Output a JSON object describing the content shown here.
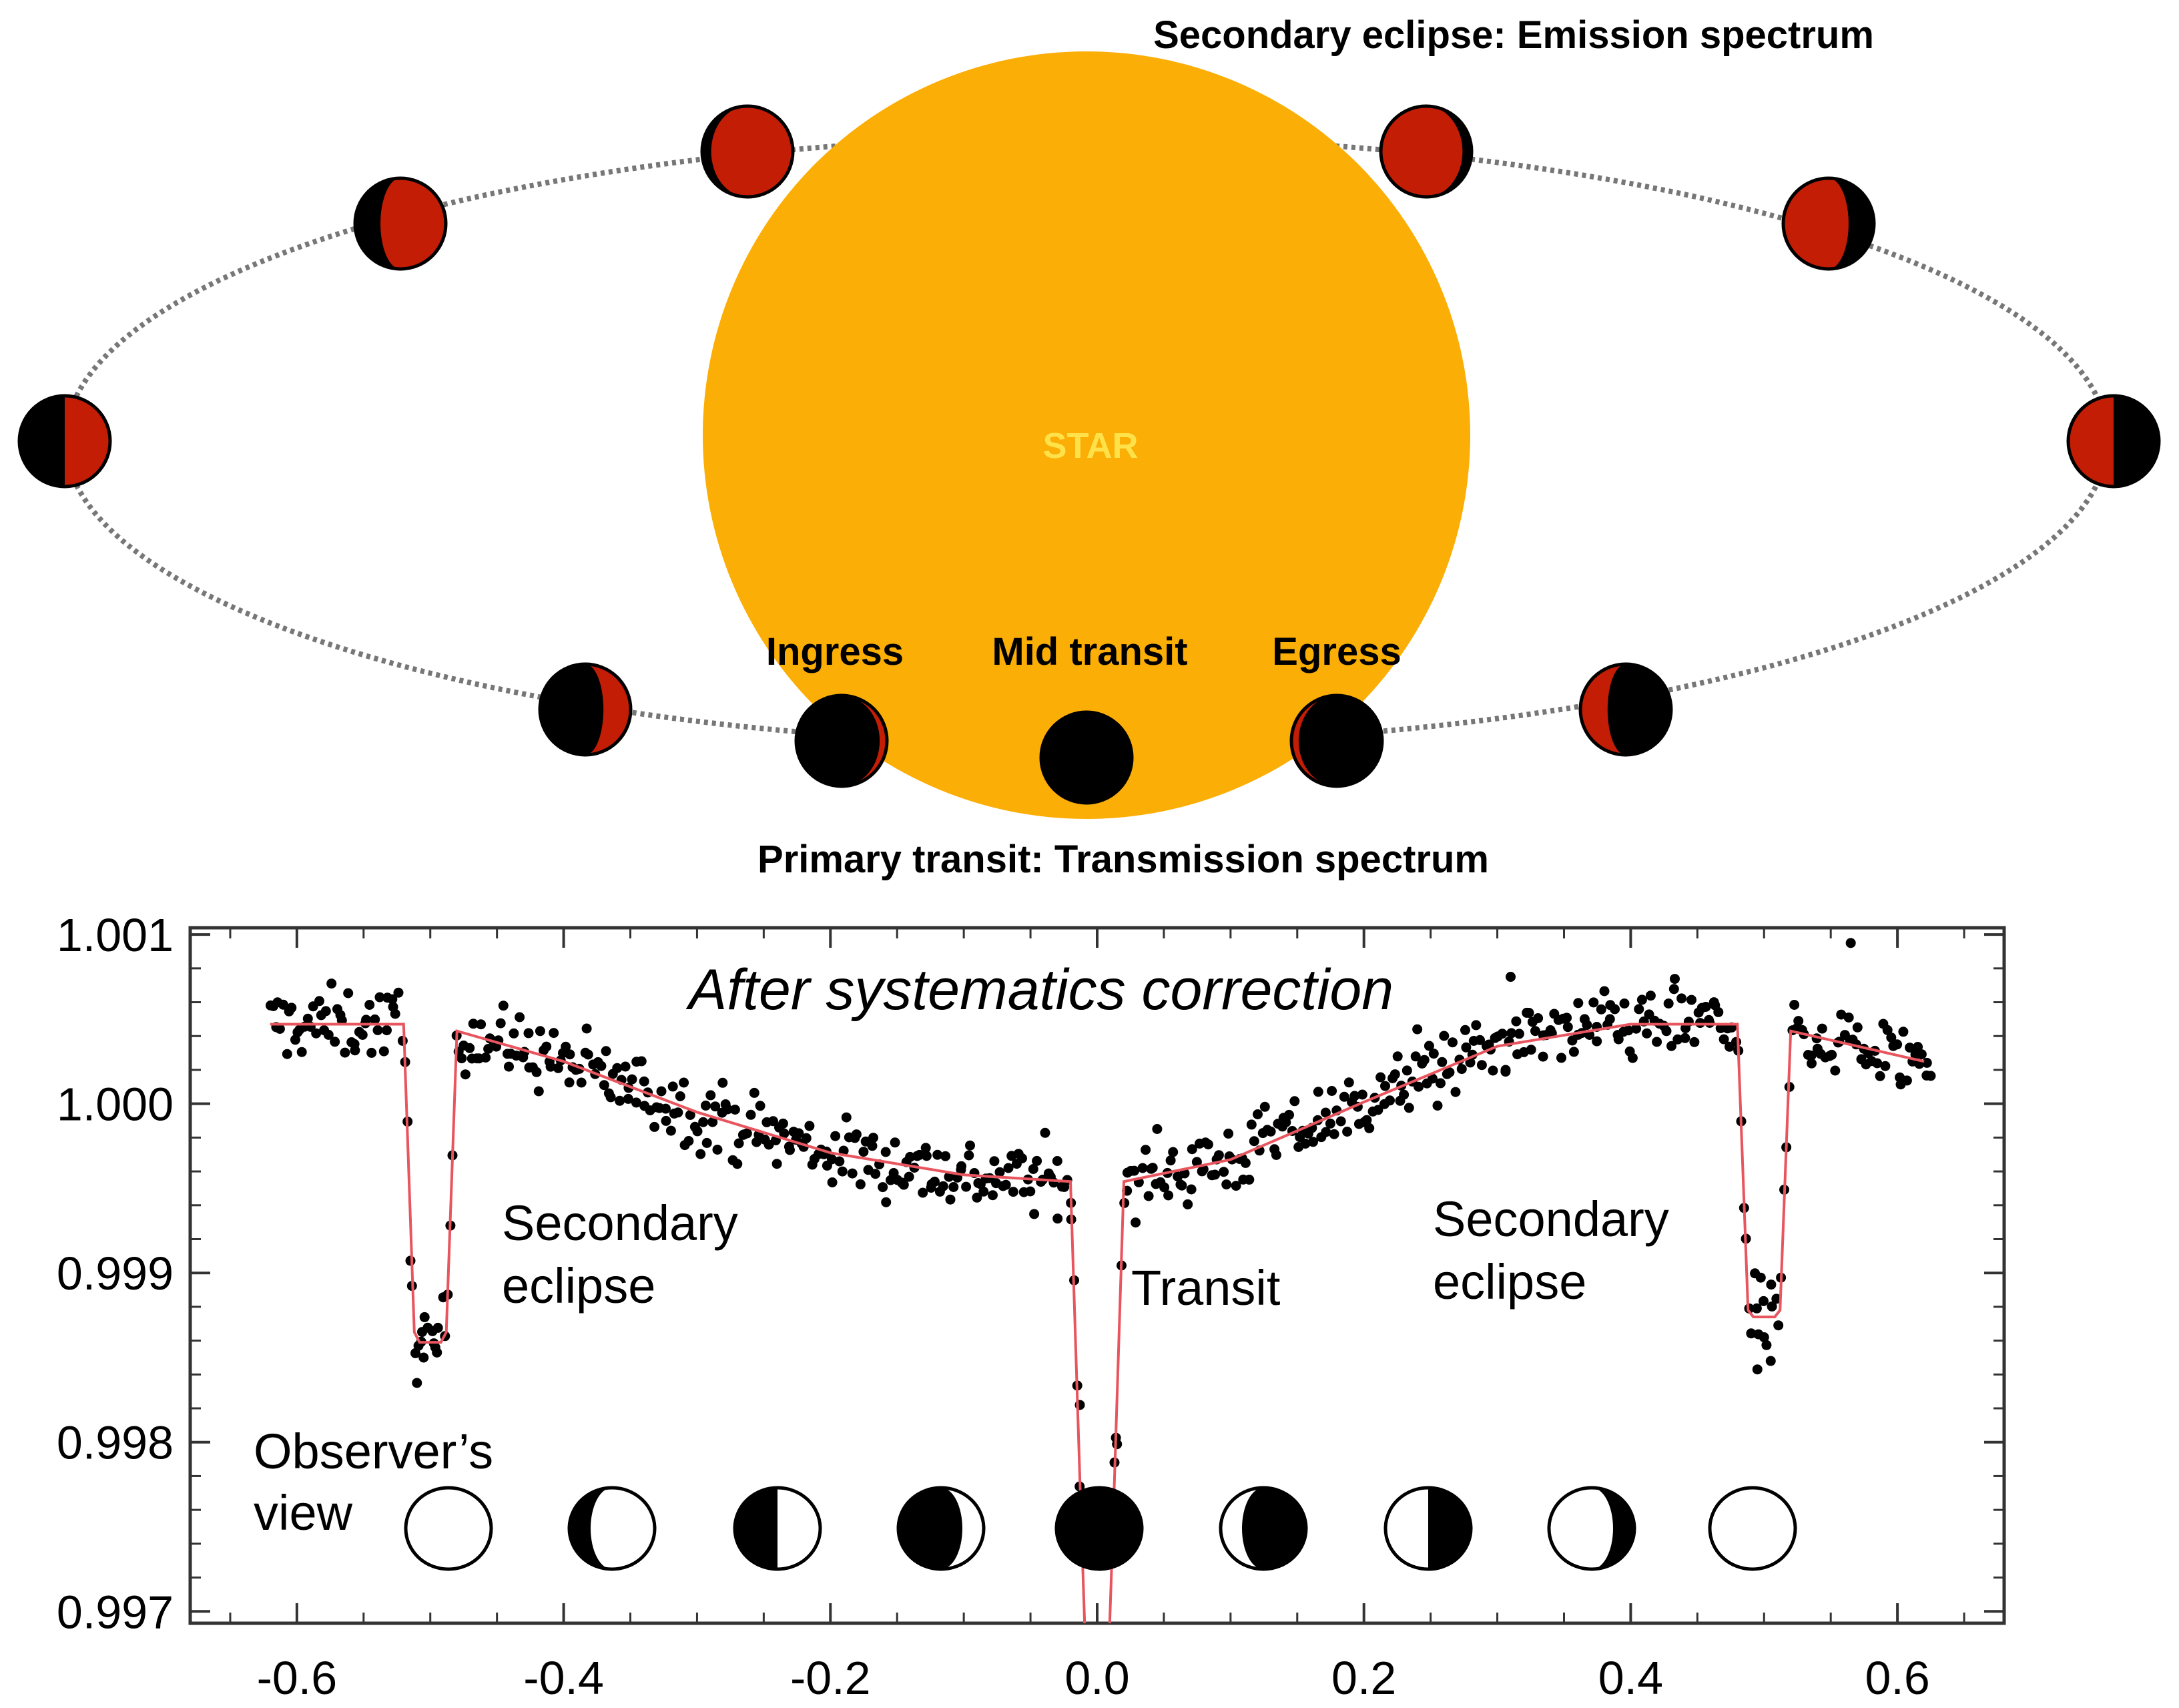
{
  "top_diagram": {
    "secondary_label": "Secondary eclipse: Emission spectrum",
    "primary_label": "Primary transit: Transmission spectrum",
    "star_label": "STAR",
    "phase_labels": {
      "ingress": "Ingress",
      "mid": "Mid transit",
      "egress": "Egress"
    },
    "colors": {
      "star": "#FBAE05",
      "star_label": "#FFE24A",
      "planet_day": "#C31D05",
      "planet_night": "#000000",
      "orbit": "#777777"
    }
  },
  "chart_data": {
    "type": "scatter",
    "title": "After systematics correction",
    "xlabel": "",
    "ylabel": "",
    "xlim": [
      -0.68,
      0.68
    ],
    "ylim": [
      0.99693,
      1.00104
    ],
    "x_ticks": [
      -0.6,
      -0.4,
      -0.2,
      0.0,
      0.2,
      0.4,
      0.6
    ],
    "x_tick_labels": [
      "-0.6",
      "-0.4",
      "-0.2",
      "0.0",
      "0.2",
      "0.4",
      "0.6"
    ],
    "y_ticks": [
      0.997,
      0.998,
      0.999,
      1.0,
      1.001
    ],
    "y_tick_labels": [
      "0.997",
      "0.998",
      "0.999",
      "1.000",
      "1.001"
    ],
    "annotations": {
      "secondary_left_1": "Secondary",
      "secondary_left_2": "eclipse",
      "transit": "Transit",
      "secondary_right_1": "Secondary",
      "secondary_right_2": "eclipse",
      "observer_1": "Observer’s",
      "observer_2": "view"
    },
    "model_curve": {
      "name": "model",
      "color": "#E8555E",
      "x": [
        -0.62,
        -0.52,
        -0.512,
        -0.508,
        -0.492,
        -0.488,
        -0.48,
        -0.4,
        -0.3,
        -0.2,
        -0.1,
        -0.02,
        -0.012,
        -0.008,
        0.008,
        0.012,
        0.02,
        0.1,
        0.2,
        0.3,
        0.4,
        0.48,
        0.488,
        0.492,
        0.508,
        0.512,
        0.52,
        0.62
      ],
      "y": [
        1.00047,
        1.00047,
        0.99865,
        0.99859,
        0.99859,
        0.99865,
        1.00043,
        1.00025,
        0.99995,
        0.99971,
        0.99958,
        0.99954,
        0.99754,
        0.9966,
        0.9966,
        0.99754,
        0.99954,
        0.99967,
        1.00001,
        1.00034,
        1.00047,
        1.00047,
        0.99878,
        0.99874,
        0.99874,
        0.99878,
        1.00043,
        1.00025
      ]
    },
    "observed_points": {
      "color": "#000000",
      "x_start": -0.62,
      "x_end": 0.625,
      "count": 620,
      "scatter_amplitude": 0.00025,
      "outliers": [
        {
          "x": -0.51,
          "y": 0.99835
        },
        {
          "x": -0.505,
          "y": 0.9985
        },
        {
          "x": -0.495,
          "y": 0.99853
        },
        {
          "x": 0.495,
          "y": 0.99843
        },
        {
          "x": 0.505,
          "y": 0.99848
        },
        {
          "x": 0.5,
          "y": 0.99862
        },
        {
          "x": -0.013,
          "y": 0.99822
        },
        {
          "x": 0.013,
          "y": 0.99788
        },
        {
          "x": 0.24,
          "y": 1.00044
        },
        {
          "x": 0.31,
          "y": 1.00075
        },
        {
          "x": 0.565,
          "y": 1.00095
        }
      ]
    },
    "observer_view_phases": [
      0,
      0.25,
      0.5,
      0.75,
      1.0,
      0.75,
      0.5,
      0.25,
      0
    ]
  }
}
